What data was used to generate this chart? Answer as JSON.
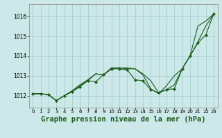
{
  "background_color": "#cce8e8",
  "grid_color": "#99cccc",
  "line_color": "#1a5c1a",
  "marker_color": "#1a5c1a",
  "title": "Graphe pression niveau de la mer (hPa)",
  "title_fontsize": 7.5,
  "xlim": [
    -0.5,
    23.5
  ],
  "ylim": [
    1011.4,
    1016.6
  ],
  "yticks": [
    1012,
    1013,
    1014,
    1015,
    1016
  ],
  "xticks": [
    0,
    1,
    2,
    3,
    4,
    5,
    6,
    7,
    8,
    9,
    10,
    11,
    12,
    13,
    14,
    15,
    16,
    17,
    18,
    19,
    20,
    21,
    22,
    23
  ],
  "series": [
    {
      "x": [
        0,
        1,
        2,
        3,
        4,
        5,
        6,
        7,
        8,
        9,
        10,
        11,
        12,
        13,
        14,
        15,
        16,
        17,
        18,
        19,
        20,
        21,
        22,
        23
      ],
      "y": [
        1012.1,
        1012.1,
        1012.05,
        1011.75,
        1012.0,
        1012.2,
        1012.5,
        1012.75,
        1013.1,
        1013.05,
        1013.35,
        1013.4,
        1013.4,
        1013.35,
        1013.1,
        1012.75,
        1012.15,
        1012.3,
        1012.55,
        1013.35,
        1014.0,
        1014.7,
        1015.5,
        1016.1
      ],
      "with_markers": false
    },
    {
      "x": [
        0,
        1,
        2,
        3,
        4,
        5,
        6,
        7,
        8,
        9,
        10,
        11,
        12,
        13,
        14,
        15,
        16,
        17,
        18,
        19,
        20,
        21,
        22,
        23
      ],
      "y": [
        1012.1,
        1012.1,
        1012.05,
        1011.75,
        1012.0,
        1012.25,
        1012.55,
        1012.8,
        1013.1,
        1013.05,
        1013.4,
        1013.4,
        1013.35,
        1013.35,
        1013.05,
        1012.35,
        1012.1,
        1012.5,
        1013.0,
        1013.35,
        1014.0,
        1015.5,
        1015.75,
        1016.1
      ],
      "with_markers": false
    },
    {
      "x": [
        0,
        1,
        2,
        3,
        4,
        5,
        6,
        7,
        8,
        9,
        10,
        11,
        12,
        13,
        14,
        15,
        16,
        17,
        18,
        19,
        20,
        21,
        22,
        23
      ],
      "y": [
        1012.1,
        1012.1,
        1012.05,
        1011.75,
        1012.0,
        1012.2,
        1012.45,
        1012.75,
        1012.7,
        1013.05,
        1013.35,
        1013.35,
        1013.3,
        1012.8,
        1012.75,
        1012.3,
        1012.15,
        1012.3,
        1012.35,
        1013.35,
        1014.0,
        1014.65,
        1015.05,
        1016.1
      ],
      "with_markers": true
    }
  ]
}
